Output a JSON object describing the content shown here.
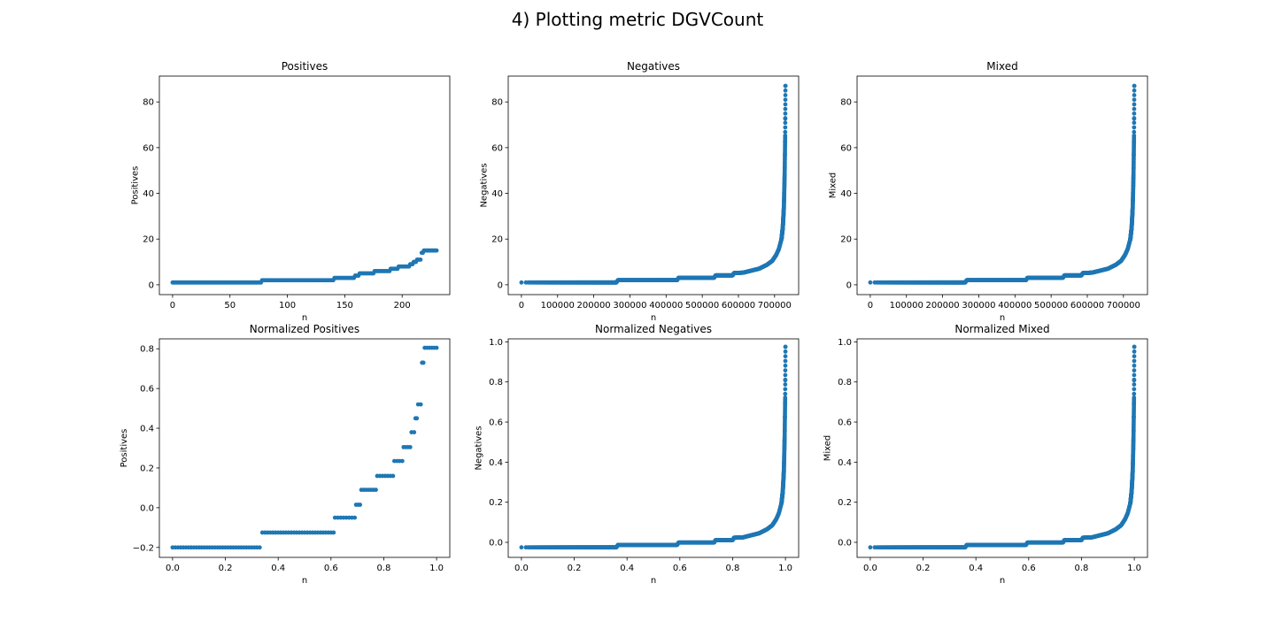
{
  "suptitle": "4) Plotting metric DGVCount",
  "colors": {
    "points": "#1f77b4",
    "axes": "#000000",
    "background": "#ffffff"
  },
  "chart_data": [
    {
      "type": "scatter",
      "title": "Positives",
      "xlabel": "n",
      "ylabel": "Positives",
      "xlim": [
        -11.5,
        241.5
      ],
      "ylim": [
        -4.3,
        91.3
      ],
      "xticks": [
        0,
        50,
        100,
        150,
        200
      ],
      "yticks": [
        0,
        20,
        40,
        60,
        80
      ],
      "grid": false,
      "series": [
        {
          "x_range": [
            0,
            77
          ],
          "y": 1
        },
        {
          "x_range": [
            78,
            140
          ],
          "y": 2
        },
        {
          "x_range": [
            141,
            158
          ],
          "y": 3
        },
        {
          "x_range": [
            159,
            162
          ],
          "y": 4
        },
        {
          "x_range": [
            163,
            175
          ],
          "y": 5
        },
        {
          "x_range": [
            176,
            189
          ],
          "y": 6
        },
        {
          "x_range": [
            190,
            196
          ],
          "y": 7
        },
        {
          "x_range": [
            197,
            206
          ],
          "y": 8
        },
        {
          "x_range": [
            207,
            209
          ],
          "y": 9
        },
        {
          "x_range": [
            210,
            212
          ],
          "y": 10
        },
        {
          "x_range": [
            213,
            216
          ],
          "y": 11
        },
        {
          "x_range": [
            217,
            218
          ],
          "y": 14
        },
        {
          "x_range": [
            219,
            230
          ],
          "y": 15
        }
      ]
    },
    {
      "type": "scatter",
      "title": "Negatives",
      "xlabel": "n",
      "ylabel": "Negatives",
      "xlim": [
        -36500,
        766500
      ],
      "ylim": [
        -4.3,
        91.3
      ],
      "xticks": [
        0,
        100000,
        200000,
        300000,
        400000,
        500000,
        600000,
        700000
      ],
      "yticks": [
        0,
        20,
        40,
        60,
        80
      ],
      "grid": false,
      "curve": "dense-sorted",
      "x_max": 730000,
      "y_min": 1,
      "y_max": 87
    },
    {
      "type": "scatter",
      "title": "Mixed",
      "xlabel": "n",
      "ylabel": "Mixed",
      "xlim": [
        -36500,
        766500
      ],
      "ylim": [
        -4.3,
        91.3
      ],
      "xticks": [
        0,
        100000,
        200000,
        300000,
        400000,
        500000,
        600000,
        700000
      ],
      "yticks": [
        0,
        20,
        40,
        60,
        80
      ],
      "grid": false,
      "curve": "dense-sorted",
      "x_max": 730000,
      "y_min": 1,
      "y_max": 87
    },
    {
      "type": "scatter",
      "title": "Normalized Positives",
      "xlabel": "n",
      "ylabel": "Positives",
      "xlim": [
        -0.05,
        1.05
      ],
      "ylim": [
        -0.25,
        0.85
      ],
      "xticks": [
        0.0,
        0.2,
        0.4,
        0.6,
        0.8,
        1.0
      ],
      "yticks": [
        -0.2,
        0.0,
        0.2,
        0.4,
        0.6,
        0.8
      ],
      "tick_decimals": 1,
      "grid": false,
      "series": [
        {
          "x_range": [
            0.0,
            0.33
          ],
          "y": -0.2
        },
        {
          "x_range": [
            0.34,
            0.61
          ],
          "y": -0.125
        },
        {
          "x_range": [
            0.615,
            0.69
          ],
          "y": -0.05
        },
        {
          "x_range": [
            0.695,
            0.71
          ],
          "y": 0.015
        },
        {
          "x_range": [
            0.715,
            0.77
          ],
          "y": 0.09
        },
        {
          "x_range": [
            0.775,
            0.835
          ],
          "y": 0.16
        },
        {
          "x_range": [
            0.84,
            0.87
          ],
          "y": 0.235
        },
        {
          "x_range": [
            0.875,
            0.9
          ],
          "y": 0.305
        },
        {
          "x_range": [
            0.905,
            0.915
          ],
          "y": 0.38
        },
        {
          "x_range": [
            0.92,
            0.925
          ],
          "y": 0.45
        },
        {
          "x_range": [
            0.93,
            0.94
          ],
          "y": 0.52
        },
        {
          "x_range": [
            0.945,
            0.95
          ],
          "y": 0.73
        },
        {
          "x_range": [
            0.955,
            1.0
          ],
          "y": 0.805
        }
      ]
    },
    {
      "type": "scatter",
      "title": "Normalized Negatives",
      "xlabel": "n",
      "ylabel": "Negatives",
      "xlim": [
        -0.05,
        1.05
      ],
      "ylim": [
        -0.075,
        1.015
      ],
      "xticks": [
        0.0,
        0.2,
        0.4,
        0.6,
        0.8,
        1.0
      ],
      "yticks": [
        0.0,
        0.2,
        0.4,
        0.6,
        0.8,
        1.0
      ],
      "tick_decimals": 1,
      "grid": false,
      "curve": "dense-sorted",
      "x_max": 1.0,
      "y_min": -0.025,
      "y_max": 0.975
    },
    {
      "type": "scatter",
      "title": "Normalized Mixed",
      "xlabel": "n",
      "ylabel": "Mixed",
      "xlim": [
        -0.05,
        1.05
      ],
      "ylim": [
        -0.075,
        1.015
      ],
      "xticks": [
        0.0,
        0.2,
        0.4,
        0.6,
        0.8,
        1.0
      ],
      "yticks": [
        0.0,
        0.2,
        0.4,
        0.6,
        0.8,
        1.0
      ],
      "tick_decimals": 1,
      "grid": false,
      "curve": "dense-sorted",
      "x_max": 1.0,
      "y_min": -0.025,
      "y_max": 0.975
    }
  ]
}
